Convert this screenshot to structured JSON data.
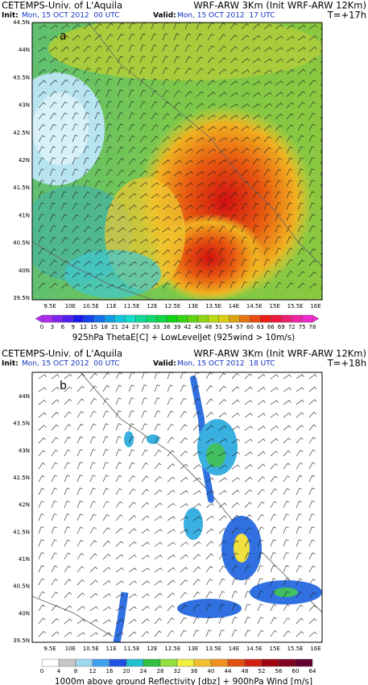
{
  "panels": [
    {
      "source": "CETEMPS-Univ. of L'Aquila",
      "model": "WRF-ARW 3Km (Init WRF-ARW 12Km)",
      "init_label": "Init:",
      "init": "Mon, 15 OCT 2012  00 UTC",
      "valid_label": "Valid:",
      "valid": "Mon, 15 OCT 2012  17 UTC",
      "lead": "T=+17h",
      "label": "a",
      "lat_labels": [
        "44.5N",
        "44N",
        "43.5N",
        "43N",
        "42.5N",
        "42N",
        "41.5N",
        "41N",
        "40.5N",
        "40N",
        "39.5N"
      ],
      "lon_labels": [
        "9.5E",
        "10E",
        "10.5E",
        "11E",
        "11.5E",
        "12E",
        "12.5E",
        "13E",
        "13.5E",
        "14E",
        "14.5E",
        "15E",
        "15.5E",
        "16E"
      ],
      "colorbar_ticks": [
        0,
        3,
        6,
        9,
        12,
        15,
        18,
        21,
        24,
        27,
        30,
        33,
        36,
        39,
        42,
        45,
        48,
        51,
        54,
        57,
        60,
        63,
        66,
        69,
        72,
        75,
        78
      ],
      "caption": "925hPa ThetaE[C] + LowLevelJet (925wind > 10m/s)"
    },
    {
      "source": "CETEMPS-Univ. of L'Aquila",
      "model": "WRF-ARW 3Km (Init WRF-ARW 12Km)",
      "init_label": "Init:",
      "init": "Mon, 15 OCT 2012  00 UTC",
      "valid_label": "Valid:",
      "valid": "Mon, 15 OCT 2012  18 UTC",
      "lead": "T=+18h",
      "label": "b",
      "lat_labels": [
        "44N",
        "43.5N",
        "43N",
        "42.5N",
        "42N",
        "41.5N",
        "41N",
        "40.5N",
        "40N",
        "39.5N"
      ],
      "lon_labels": [
        "9.5E",
        "10E",
        "10.5E",
        "11E",
        "11.5E",
        "12E",
        "12.5E",
        "13E",
        "13.5E",
        "14E",
        "14.5E",
        "15E",
        "15.5E",
        "16E"
      ],
      "colorbar_ticks": [
        0,
        4,
        8,
        12,
        16,
        20,
        24,
        28,
        32,
        36,
        40,
        44,
        48,
        52,
        56,
        60,
        64
      ],
      "caption": "1000m above ground Reflectivity [dbz] + 900hPa Wind [m/s]"
    }
  ]
}
